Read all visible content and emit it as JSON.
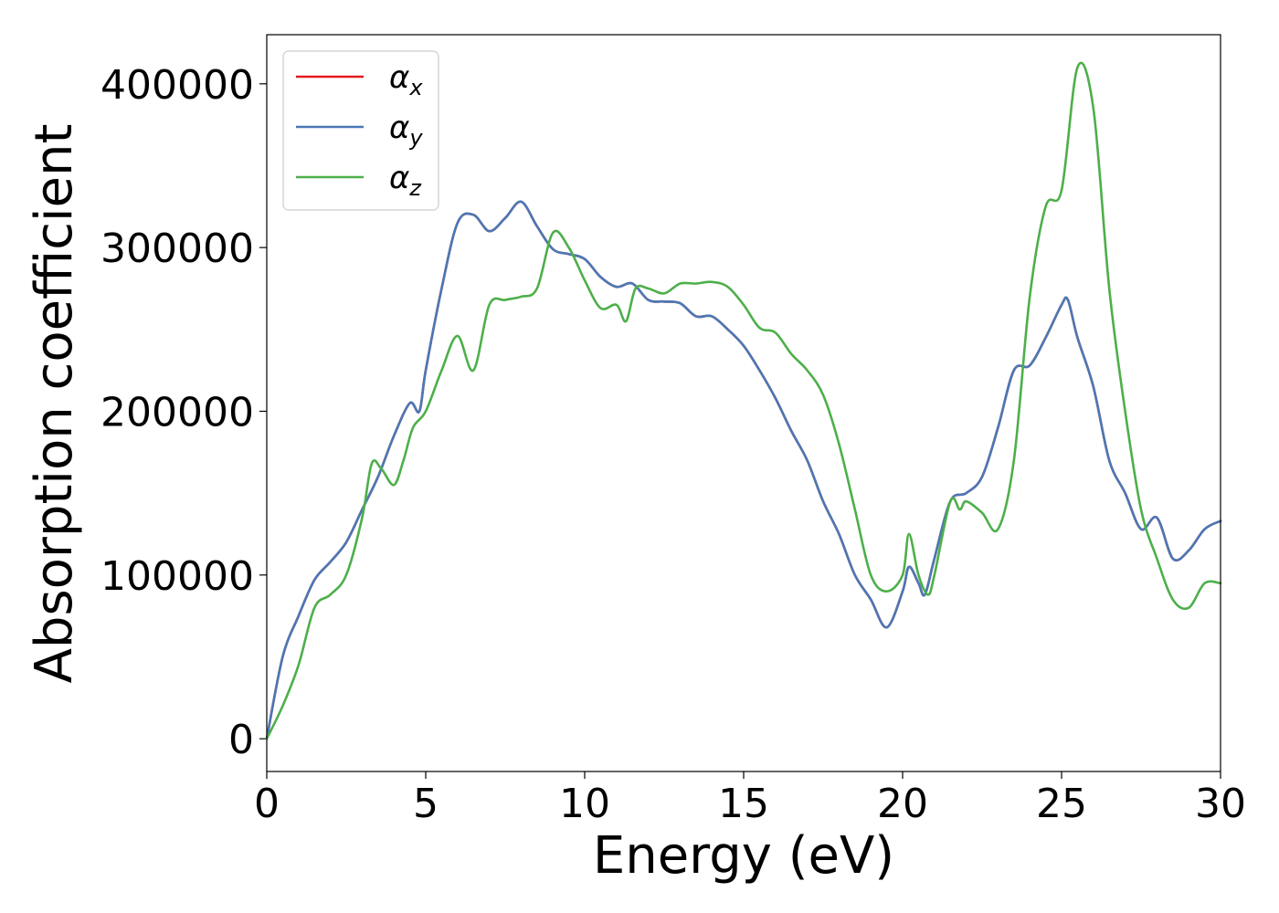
{
  "chart_data": {
    "type": "line",
    "title": "",
    "xlabel": "Energy (eV)",
    "ylabel": "Absorption coefficient",
    "xlim": [
      0,
      30
    ],
    "ylim": [
      -20000,
      430000
    ],
    "xticks": [
      0,
      5,
      10,
      15,
      20,
      25,
      30
    ],
    "xtick_labels": [
      "0",
      "5",
      "10",
      "15",
      "20",
      "25",
      "30"
    ],
    "yticks": [
      0,
      100000,
      200000,
      300000,
      400000
    ],
    "ytick_labels": [
      "0",
      "100000",
      "200000",
      "300000",
      "400000"
    ],
    "grid": false,
    "legend_position": "top-left",
    "series": [
      {
        "name": "α",
        "sub": "x",
        "color": "#e41a1c",
        "x": [
          0,
          0.5,
          1,
          1.5,
          2,
          2.5,
          3,
          3.5,
          4,
          4.5,
          4.8,
          5,
          5.5,
          6,
          6.5,
          7,
          7.5,
          8,
          8.5,
          9,
          9.5,
          10,
          10.5,
          11,
          11.5,
          12,
          12.5,
          13,
          13.5,
          14,
          14.5,
          15,
          15.5,
          16,
          16.5,
          17,
          17.5,
          18,
          18.5,
          19,
          19.5,
          20,
          20.2,
          20.5,
          20.7,
          21,
          21.5,
          22,
          22.5,
          23,
          23.5,
          24,
          24.5,
          25,
          25.2,
          25.5,
          26,
          26.5,
          27,
          27.5,
          28,
          28.5,
          29,
          29.5,
          30
        ],
        "y": [
          0,
          50000,
          75000,
          97000,
          108000,
          120000,
          140000,
          160000,
          185000,
          205000,
          200000,
          225000,
          275000,
          315000,
          320000,
          310000,
          318000,
          328000,
          313000,
          299000,
          296000,
          293000,
          282000,
          276000,
          278000,
          268000,
          267000,
          266000,
          258000,
          258000,
          250000,
          240000,
          225000,
          208000,
          188000,
          170000,
          145000,
          125000,
          100000,
          85000,
          68000,
          90000,
          105000,
          95000,
          88000,
          110000,
          145000,
          150000,
          160000,
          190000,
          225000,
          228000,
          245000,
          265000,
          268000,
          245000,
          215000,
          170000,
          150000,
          128000,
          135000,
          110000,
          115000,
          128000,
          133000
        ]
      },
      {
        "name": "α",
        "sub": "y",
        "color": "#4a78b5",
        "x": [
          0,
          0.5,
          1,
          1.5,
          2,
          2.5,
          3,
          3.5,
          4,
          4.5,
          4.8,
          5,
          5.5,
          6,
          6.5,
          7,
          7.5,
          8,
          8.5,
          9,
          9.5,
          10,
          10.5,
          11,
          11.5,
          12,
          12.5,
          13,
          13.5,
          14,
          14.5,
          15,
          15.5,
          16,
          16.5,
          17,
          17.5,
          18,
          18.5,
          19,
          19.5,
          20,
          20.2,
          20.5,
          20.7,
          21,
          21.5,
          22,
          22.5,
          23,
          23.5,
          24,
          24.5,
          25,
          25.2,
          25.5,
          26,
          26.5,
          27,
          27.5,
          28,
          28.5,
          29,
          29.5,
          30
        ],
        "y": [
          0,
          50000,
          75000,
          97000,
          108000,
          120000,
          140000,
          160000,
          185000,
          205000,
          200000,
          225000,
          275000,
          315000,
          320000,
          310000,
          318000,
          328000,
          313000,
          299000,
          296000,
          293000,
          282000,
          276000,
          278000,
          268000,
          267000,
          266000,
          258000,
          258000,
          250000,
          240000,
          225000,
          208000,
          188000,
          170000,
          145000,
          125000,
          100000,
          85000,
          68000,
          90000,
          105000,
          95000,
          88000,
          110000,
          145000,
          150000,
          160000,
          190000,
          225000,
          228000,
          245000,
          265000,
          268000,
          245000,
          215000,
          170000,
          150000,
          128000,
          135000,
          110000,
          115000,
          128000,
          133000
        ]
      },
      {
        "name": "α",
        "sub": "z",
        "color": "#4daf4a",
        "x": [
          0,
          0.5,
          1,
          1.5,
          2,
          2.5,
          3,
          3.3,
          3.6,
          4,
          4.3,
          4.6,
          5,
          5.5,
          6,
          6.5,
          7,
          7.5,
          8,
          8.5,
          9,
          9.5,
          10,
          10.5,
          11,
          11.3,
          11.6,
          12,
          12.5,
          13,
          13.5,
          14,
          14.5,
          15,
          15.5,
          16,
          16.5,
          17,
          17.5,
          18,
          18.5,
          19,
          19.5,
          20,
          20.2,
          20.5,
          20.8,
          21,
          21.5,
          21.8,
          22,
          22.5,
          23,
          23.5,
          24,
          24.5,
          25,
          25.5,
          26,
          26.5,
          27,
          27.5,
          28,
          28.5,
          29,
          29.5,
          30
        ],
        "y": [
          0,
          20000,
          45000,
          80000,
          88000,
          100000,
          135000,
          168000,
          165000,
          155000,
          170000,
          190000,
          200000,
          225000,
          246000,
          225000,
          265000,
          268000,
          270000,
          275000,
          309000,
          300000,
          280000,
          263000,
          265000,
          255000,
          275000,
          275000,
          272000,
          278000,
          278000,
          279000,
          276000,
          265000,
          251000,
          248000,
          235000,
          225000,
          210000,
          180000,
          140000,
          100000,
          90000,
          100000,
          125000,
          100000,
          88000,
          100000,
          145000,
          140000,
          145000,
          138000,
          128000,
          170000,
          270000,
          325000,
          335000,
          410000,
          385000,
          275000,
          200000,
          140000,
          110000,
          85000,
          80000,
          95000,
          95000
        ]
      }
    ]
  }
}
